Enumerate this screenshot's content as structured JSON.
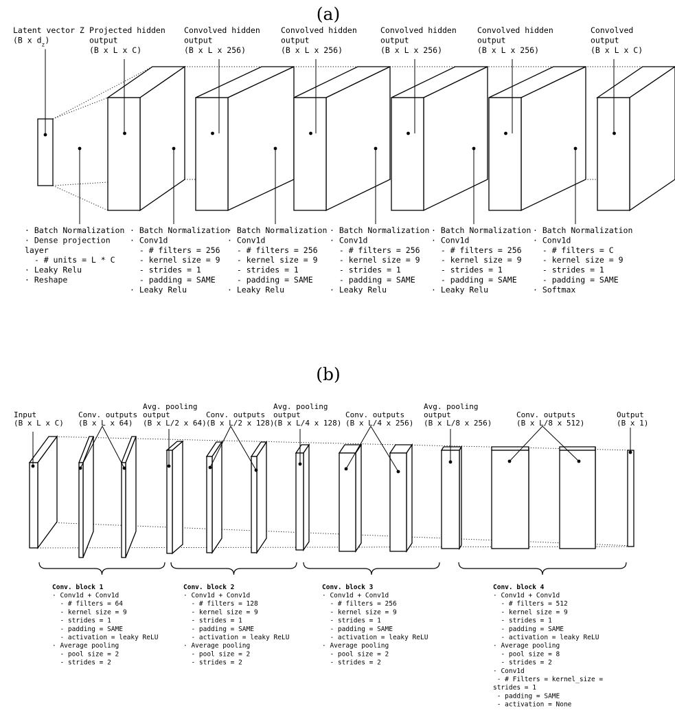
{
  "panel_a": {
    "label": "(a)",
    "top_labels": [
      [
        "Latent vector Z",
        "(B x d_z)"
      ],
      [
        "Projected hidden",
        "output",
        "(B x L x C)"
      ],
      [
        "Convolved hidden",
        "output",
        "(B x L x 256)"
      ],
      [
        "Convolved hidden",
        "output",
        "(B x L x 256)"
      ],
      [
        "Convolved hidden",
        "output",
        "(B x L x 256)"
      ],
      [
        "Convolved hidden",
        "output",
        "(B x L x 256)"
      ],
      [
        "Convolved",
        "output",
        "(B x L x C)"
      ]
    ],
    "ops": [
      [
        "· Batch Normalization",
        "· Dense projection",
        "layer",
        "  - # units = L * C",
        "· Leaky Relu",
        "· Reshape"
      ],
      [
        "· Batch Normalization",
        "· Conv1d",
        "  - # filters = 256",
        "  - kernel size = 9",
        "  - strides = 1",
        "  - padding = SAME",
        "· Leaky Relu"
      ],
      [
        "· Batch Normalization",
        "· Conv1d",
        "  - # filters = 256",
        "  - kernel size = 9",
        "  - strides = 1",
        "  - padding = SAME",
        "· Leaky Relu"
      ],
      [
        "· Batch Normalization",
        "· Conv1d",
        "  - # filters = 256",
        "  - kernel size = 9",
        "  - strides = 1",
        "  - padding = SAME",
        "· Leaky Relu"
      ],
      [
        "· Batch Normalization",
        "· Conv1d",
        "  - # filters = 256",
        "  - kernel size = 9",
        "  - strides = 1",
        "  - padding = SAME",
        "· Leaky Relu"
      ],
      [
        "· Batch Normalization",
        "· Conv1d",
        "  - # filters = C",
        "  - kernel size = 9",
        "  - strides = 1",
        "  - padding = SAME",
        "· Softmax"
      ]
    ]
  },
  "panel_b": {
    "label": "(b)",
    "top_labels": [
      [
        "Input",
        "(B x L x C)"
      ],
      [
        "Conv. outputs",
        "(B x L x 64)"
      ],
      [
        "Avg. pooling",
        "output",
        "(B x L/2 x 64)"
      ],
      [
        "Conv. outputs",
        "(B x L/2 x 128)"
      ],
      [
        "Avg. pooling",
        "output",
        "(B x L/4 x 128)"
      ],
      [
        "Conv. outputs",
        "(B x L/4 x 256)"
      ],
      [
        "Avg. pooling",
        "output",
        "(B x L/8 x 256)"
      ],
      [
        "Conv. outputs",
        "(B x L/8 x 512)"
      ],
      [
        "Output",
        "(B x 1)"
      ]
    ],
    "blocks": [
      {
        "title": "Conv. block 1",
        "lines": [
          "· Conv1d + Conv1d",
          "  - # filters = 64",
          "  - kernel size = 9",
          "  - strides = 1",
          "  - padding = SAME",
          "  - activation = leaky ReLU",
          "· Average pooling",
          "  - pool size = 2",
          "  - strides = 2"
        ]
      },
      {
        "title": "Conv. block 2",
        "lines": [
          "· Conv1d + Conv1d",
          "  - # filters = 128",
          "  - kernel size = 9",
          "  - strides = 1",
          "  - padding = SAME",
          "  - activation = leaky ReLU",
          "· Average pooling",
          "  - pool size = 2",
          "  - strides = 2"
        ]
      },
      {
        "title": "Conv. block 3",
        "lines": [
          "· Conv1d + Conv1d",
          "  - # filters = 256",
          "  - kernel size = 9",
          "  - strides = 1",
          "  - padding = SAME",
          "  - activation = leaky ReLU",
          "· Average pooling",
          "  - pool size = 2",
          "  - strides = 2"
        ]
      },
      {
        "title": "Conv. block 4",
        "lines": [
          "· Conv1d + Conv1d",
          "  - # filters = 512",
          "  - kernel size = 9",
          "  - strides = 1",
          "  - padding = SAME",
          "  - activation = leaky ReLU",
          "· Average pooling",
          "  - pool size = 8",
          "  - strides = 2",
          "· Conv1d",
          " - # Filters = kernel_size =",
          "strides = 1",
          " - padding = SAME",
          " - activation = None"
        ]
      }
    ]
  }
}
